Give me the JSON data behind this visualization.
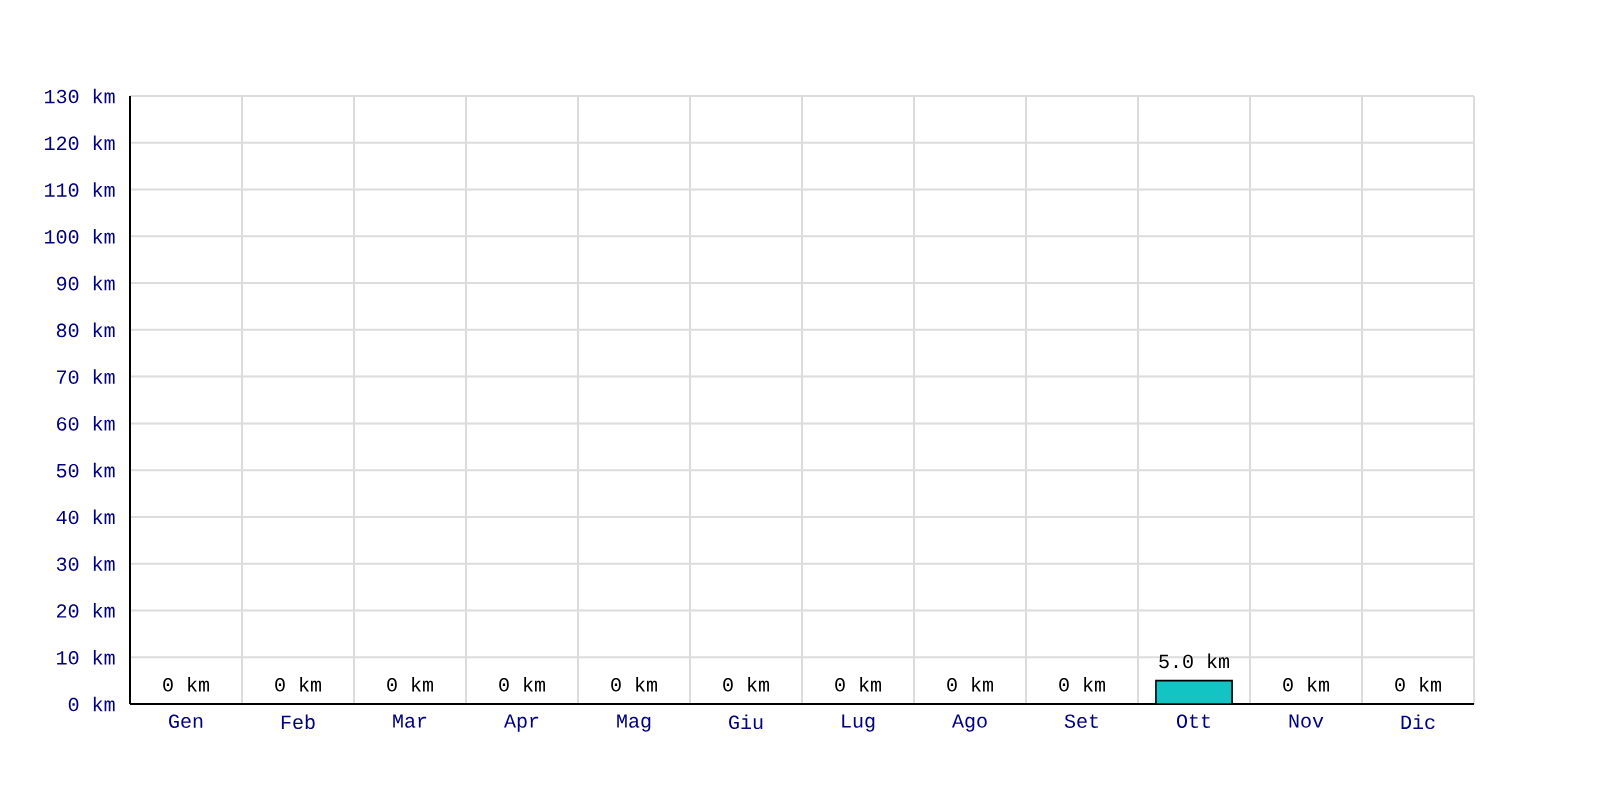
{
  "chart_data": {
    "type": "bar",
    "categories": [
      "Gen",
      "Feb",
      "Mar",
      "Apr",
      "Mag",
      "Giu",
      "Lug",
      "Ago",
      "Set",
      "Ott",
      "Nov",
      "Dic"
    ],
    "values": [
      0,
      0,
      0,
      0,
      0,
      0,
      0,
      0,
      0,
      5,
      0,
      0
    ],
    "color": "#12c4c4",
    "value_labels": [
      "0 km",
      "0 km",
      "0 km",
      "0 km",
      "0 km",
      "0 km",
      "0 km",
      "0 km",
      "0 km",
      "5.0 km",
      "0 km",
      "0 km"
    ],
    "ylim": [
      0,
      130
    ],
    "yticks": [
      {
        "value": 0,
        "label": "0 km"
      },
      {
        "value": 10,
        "label": "10 km"
      },
      {
        "value": 20,
        "label": "20 km"
      },
      {
        "value": 30,
        "label": "30 km"
      },
      {
        "value": 40,
        "label": "40 km"
      },
      {
        "value": 50,
        "label": "50 km"
      },
      {
        "value": 60,
        "label": "60 km"
      },
      {
        "value": 70,
        "label": "70 km"
      },
      {
        "value": 80,
        "label": "80 km"
      },
      {
        "value": 90,
        "label": "90 km"
      },
      {
        "value": 100,
        "label": "100 km"
      },
      {
        "value": 110,
        "label": "110 km"
      },
      {
        "value": 120,
        "label": "120 km"
      },
      {
        "value": 130,
        "label": "130 km"
      }
    ],
    "grid": true
  }
}
